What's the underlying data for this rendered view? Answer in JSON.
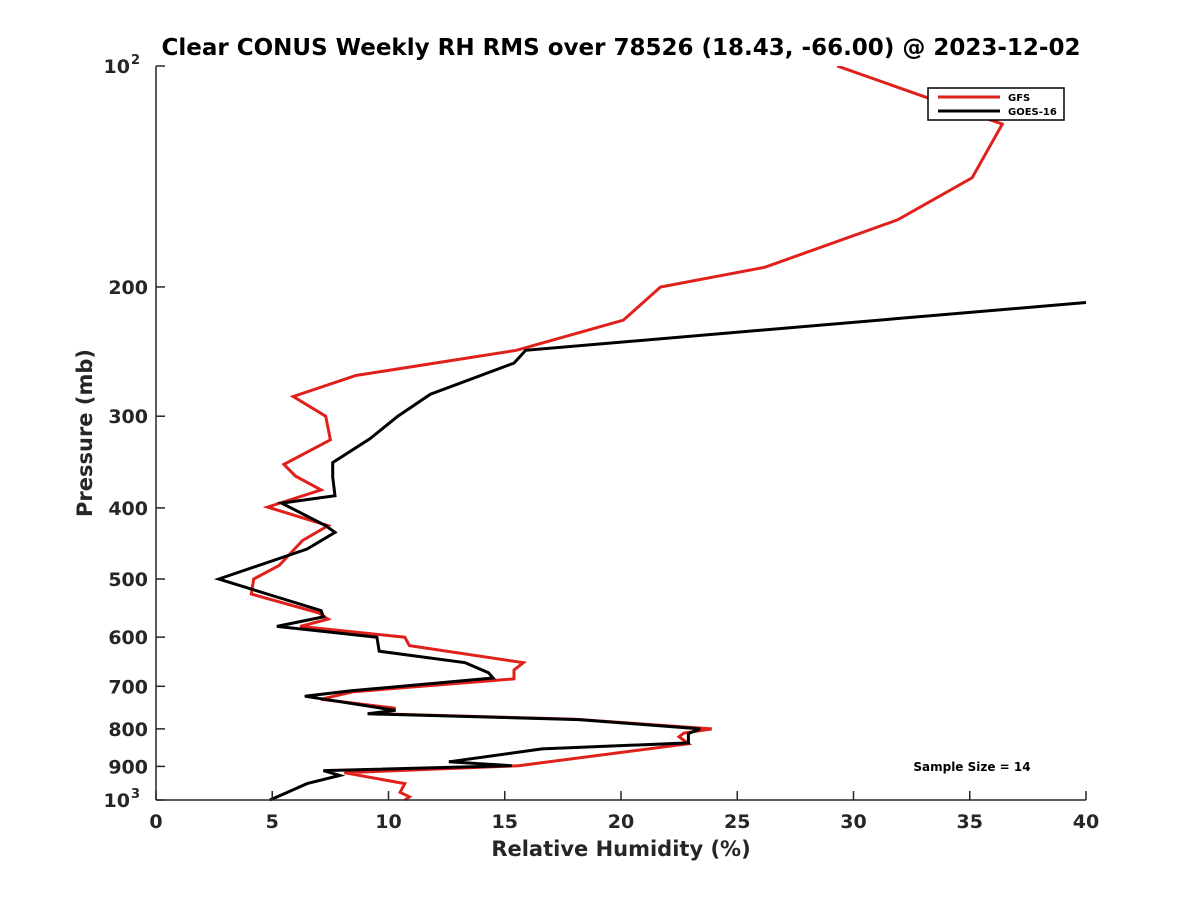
{
  "chart_data": {
    "type": "line",
    "title": "Clear CONUS Weekly RH RMS over 78526 (18.43, -66.00) @ 2023-12-02",
    "xlabel": "Relative Humidity (%)",
    "ylabel": "Pressure (mb)",
    "xlim": [
      0,
      40
    ],
    "ylim": [
      100,
      1000
    ],
    "y_scale": "log",
    "y_reversed": true,
    "grid": false,
    "legend_position": "top-right",
    "x_ticks": [
      {
        "value": 0,
        "label": "0"
      },
      {
        "value": 5,
        "label": "5"
      },
      {
        "value": 10,
        "label": "10"
      },
      {
        "value": 15,
        "label": "15"
      },
      {
        "value": 20,
        "label": "20"
      },
      {
        "value": 25,
        "label": "25"
      },
      {
        "value": 30,
        "label": "30"
      },
      {
        "value": 35,
        "label": "35"
      },
      {
        "value": 40,
        "label": "40"
      }
    ],
    "y_ticks": [
      {
        "value": 100,
        "label": "10",
        "sup": "2"
      },
      {
        "value": 200,
        "label": "200",
        "sup": ""
      },
      {
        "value": 300,
        "label": "300",
        "sup": ""
      },
      {
        "value": 400,
        "label": "400",
        "sup": ""
      },
      {
        "value": 500,
        "label": "500",
        "sup": ""
      },
      {
        "value": 600,
        "label": "600",
        "sup": ""
      },
      {
        "value": 700,
        "label": "700",
        "sup": ""
      },
      {
        "value": 800,
        "label": "800",
        "sup": ""
      },
      {
        "value": 900,
        "label": "900",
        "sup": ""
      },
      {
        "value": 1000,
        "label": "10",
        "sup": "3"
      }
    ],
    "series": [
      {
        "name": "GFS",
        "color": "#e0201b",
        "points": [
          [
            29.3,
            100
          ],
          [
            36.4,
            120
          ],
          [
            35.1,
            142
          ],
          [
            31.9,
            162
          ],
          [
            26.2,
            188
          ],
          [
            21.7,
            200
          ],
          [
            20.1,
            222
          ],
          [
            15.5,
            244
          ],
          [
            8.6,
            264
          ],
          [
            5.9,
            282
          ],
          [
            7.3,
            300
          ],
          [
            7.5,
            323
          ],
          [
            5.5,
            349
          ],
          [
            6.0,
            362
          ],
          [
            7.1,
            378
          ],
          [
            4.8,
            399
          ],
          [
            7.4,
            423
          ],
          [
            6.3,
            443
          ],
          [
            5.3,
            479
          ],
          [
            4.2,
            500
          ],
          [
            4.1,
            524
          ],
          [
            7.0,
            556
          ],
          [
            7.4,
            567
          ],
          [
            6.2,
            580
          ],
          [
            10.7,
            600
          ],
          [
            10.9,
            616
          ],
          [
            15.8,
            650
          ],
          [
            15.4,
            665
          ],
          [
            15.4,
            684
          ],
          [
            8.5,
            712
          ],
          [
            7.1,
            729
          ],
          [
            10.3,
            750
          ],
          [
            9.5,
            763
          ],
          [
            18.0,
            776
          ],
          [
            23.9,
            800
          ],
          [
            22.7,
            811
          ],
          [
            22.5,
            820
          ],
          [
            22.9,
            838
          ],
          [
            15.6,
            898
          ],
          [
            8.1,
            918
          ],
          [
            10.7,
            950
          ],
          [
            10.5,
            976
          ],
          [
            10.9,
            990
          ],
          [
            10.7,
            1000
          ]
        ]
      },
      {
        "name": "GOES-16",
        "color": "#000000",
        "points": [
          [
            40.0,
            210
          ],
          [
            15.9,
            244
          ],
          [
            15.4,
            254
          ],
          [
            11.8,
            280
          ],
          [
            10.4,
            300
          ],
          [
            9.2,
            322
          ],
          [
            7.6,
            347
          ],
          [
            7.6,
            363
          ],
          [
            7.7,
            385
          ],
          [
            5.4,
            394
          ],
          [
            7.3,
            423
          ],
          [
            7.7,
            432
          ],
          [
            6.5,
            455
          ],
          [
            2.7,
            500
          ],
          [
            5.2,
            529
          ],
          [
            7.1,
            552
          ],
          [
            7.2,
            563
          ],
          [
            5.2,
            580
          ],
          [
            9.5,
            600
          ],
          [
            9.6,
            627
          ],
          [
            13.3,
            650
          ],
          [
            14.3,
            671
          ],
          [
            14.5,
            682
          ],
          [
            8.4,
            710
          ],
          [
            6.4,
            722
          ],
          [
            10.3,
            755
          ],
          [
            9.1,
            763
          ],
          [
            18.2,
            777
          ],
          [
            23.4,
            800
          ],
          [
            22.9,
            812
          ],
          [
            22.9,
            836
          ],
          [
            16.6,
            852
          ],
          [
            12.6,
            887
          ],
          [
            15.3,
            898
          ],
          [
            7.2,
            912
          ],
          [
            7.9,
            926
          ],
          [
            6.5,
            950
          ],
          [
            5.6,
            978
          ],
          [
            4.9,
            1000
          ]
        ]
      }
    ],
    "annotation": "Sample Size = 14"
  }
}
